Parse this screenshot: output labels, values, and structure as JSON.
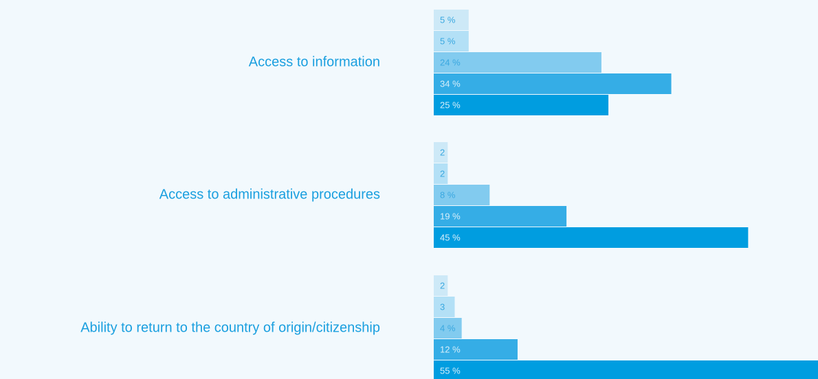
{
  "chart_data": {
    "type": "bar",
    "orientation": "horizontal",
    "categories": [
      "Access to information",
      "Access to administrative procedures",
      "Ability to return to the country of origin/citizenship"
    ],
    "series": [
      {
        "color": "#cde9f7",
        "values": [
          5,
          2,
          2
        ],
        "value_labels": [
          "5 %",
          "2",
          "2"
        ]
      },
      {
        "color": "#b3e0f6",
        "values": [
          5,
          2,
          3
        ],
        "value_labels": [
          "5 %",
          "2",
          "3"
        ]
      },
      {
        "color": "#82cbef",
        "values": [
          24,
          8,
          4
        ],
        "value_labels": [
          "24 %",
          "8 %",
          "4 %"
        ]
      },
      {
        "color": "#35ade6",
        "values": [
          34,
          19,
          12
        ],
        "value_labels": [
          "34 %",
          "19 %",
          "12 %"
        ]
      },
      {
        "color": "#009de0",
        "values": [
          25,
          45,
          55
        ],
        "value_labels": [
          "25 %",
          "45 %",
          "55 %"
        ]
      }
    ],
    "xlim": [
      0,
      55
    ]
  }
}
